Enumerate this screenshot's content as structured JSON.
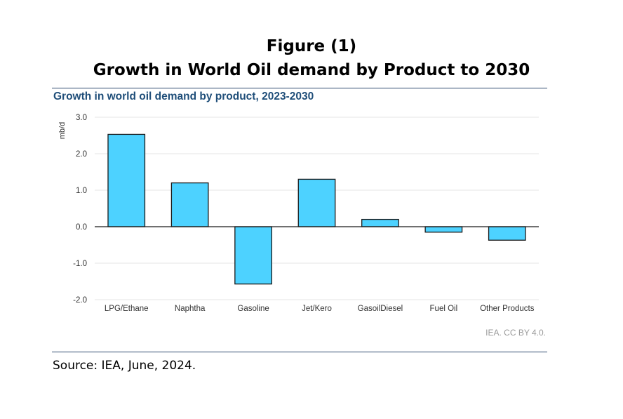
{
  "figure": {
    "heading_line1": "Figure (1)",
    "heading_line2": "Growth in World Oil demand by Product to 2030",
    "source": "Source: IEA, June, 2024."
  },
  "colors": {
    "bar_fill": "#4dd2ff",
    "bar_stroke": "#1a1a1a",
    "title": "#1f4e79",
    "rule": "#2e4a6e",
    "grid": "#e6e6e6"
  },
  "chart_data": {
    "type": "bar",
    "title": "Growth in world oil demand by product, 2023-2030",
    "ylabel": "mb/d",
    "xlabel": "",
    "ylim": [
      -2.0,
      3.0
    ],
    "yticks": [
      "3.0",
      "2.0",
      "1.0",
      "0.0",
      "-1.0",
      "-2.0"
    ],
    "categories": [
      "LPG/Ethane",
      "Naphtha",
      "Gasoline",
      "Jet/Kero",
      "GasoilDiesel",
      "Fuel Oil",
      "Other Products"
    ],
    "values": [
      2.53,
      1.2,
      -1.57,
      1.3,
      0.2,
      -0.15,
      -0.37
    ],
    "grid": true,
    "legend": "none",
    "credit": "IEA. CC BY 4.0."
  }
}
